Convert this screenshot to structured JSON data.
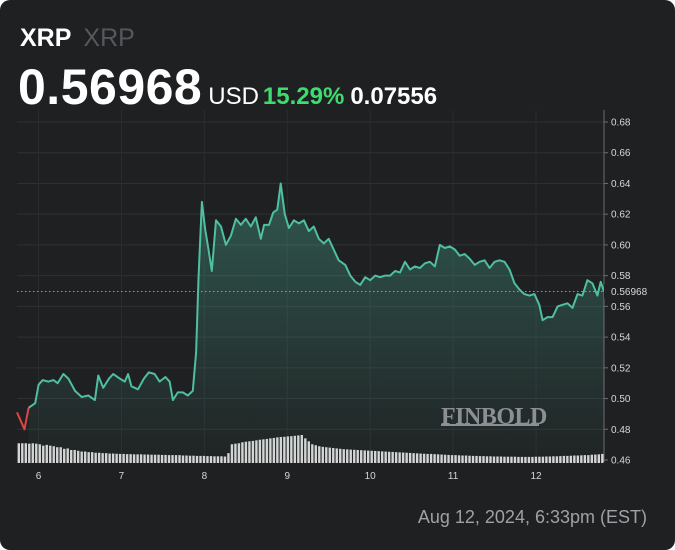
{
  "header": {
    "symbol": "XRP",
    "name": "XRP",
    "price": "0.56968",
    "currency": "USD",
    "change_percent": "15.29%",
    "change_value": "0.07556"
  },
  "footer": {
    "timestamp": "Aug 12, 2024, 6:33pm (EST)"
  },
  "watermark": "FINBOLD",
  "colors": {
    "background": "#1f2022",
    "line": "#4fbfa1",
    "negative_line": "#e04545",
    "change_positive": "#3ddc6e",
    "volume": "#e6e6e6"
  },
  "chart_data": {
    "type": "line",
    "ylim": [
      0.46,
      0.68
    ],
    "y_ticks": [
      "0.68",
      "0.66",
      "0.64",
      "0.62",
      "0.60",
      "0.58",
      "0.56",
      "0.54",
      "0.52",
      "0.50",
      "0.48",
      "0.46"
    ],
    "x_ticks": [
      "6",
      "7",
      "8",
      "9",
      "10",
      "11",
      "12"
    ],
    "x_range": [
      5.74,
      12.82
    ],
    "current_value": "0.56968",
    "grid": true,
    "series": [
      {
        "values": [
          [
            5.74,
            0.491
          ],
          [
            5.83,
            0.48
          ],
          [
            5.88,
            0.494
          ],
          [
            5.96,
            0.497
          ],
          [
            6.0,
            0.509
          ],
          [
            6.05,
            0.512
          ],
          [
            6.12,
            0.511
          ],
          [
            6.18,
            0.512
          ],
          [
            6.23,
            0.51
          ],
          [
            6.3,
            0.516
          ],
          [
            6.36,
            0.513
          ],
          [
            6.44,
            0.505
          ],
          [
            6.52,
            0.501
          ],
          [
            6.6,
            0.502
          ],
          [
            6.68,
            0.499
          ],
          [
            6.72,
            0.515
          ],
          [
            6.78,
            0.507
          ],
          [
            6.85,
            0.513
          ],
          [
            6.9,
            0.516
          ],
          [
            6.98,
            0.513
          ],
          [
            7.04,
            0.511
          ],
          [
            7.08,
            0.516
          ],
          [
            7.12,
            0.508
          ],
          [
            7.2,
            0.506
          ],
          [
            7.27,
            0.513
          ],
          [
            7.33,
            0.517
          ],
          [
            7.4,
            0.516
          ],
          [
            7.46,
            0.511
          ],
          [
            7.53,
            0.514
          ],
          [
            7.58,
            0.511
          ],
          [
            7.62,
            0.499
          ],
          [
            7.68,
            0.504
          ],
          [
            7.74,
            0.504
          ],
          [
            7.8,
            0.502
          ],
          [
            7.86,
            0.505
          ],
          [
            7.9,
            0.53
          ],
          [
            7.93,
            0.58
          ],
          [
            7.97,
            0.628
          ],
          [
            8.01,
            0.61
          ],
          [
            8.05,
            0.597
          ],
          [
            8.09,
            0.583
          ],
          [
            8.14,
            0.616
          ],
          [
            8.2,
            0.612
          ],
          [
            8.26,
            0.6
          ],
          [
            8.32,
            0.606
          ],
          [
            8.38,
            0.617
          ],
          [
            8.44,
            0.613
          ],
          [
            8.5,
            0.617
          ],
          [
            8.56,
            0.612
          ],
          [
            8.62,
            0.618
          ],
          [
            8.68,
            0.604
          ],
          [
            8.72,
            0.613
          ],
          [
            8.78,
            0.613
          ],
          [
            8.83,
            0.621
          ],
          [
            8.88,
            0.623
          ],
          [
            8.92,
            0.64
          ],
          [
            8.97,
            0.62
          ],
          [
            9.02,
            0.611
          ],
          [
            9.08,
            0.616
          ],
          [
            9.14,
            0.614
          ],
          [
            9.2,
            0.616
          ],
          [
            9.26,
            0.609
          ],
          [
            9.32,
            0.612
          ],
          [
            9.38,
            0.604
          ],
          [
            9.44,
            0.601
          ],
          [
            9.5,
            0.604
          ],
          [
            9.56,
            0.597
          ],
          [
            9.62,
            0.59
          ],
          [
            9.7,
            0.587
          ],
          [
            9.76,
            0.58
          ],
          [
            9.82,
            0.576
          ],
          [
            9.88,
            0.574
          ],
          [
            9.94,
            0.579
          ],
          [
            10.0,
            0.577
          ],
          [
            10.06,
            0.58
          ],
          [
            10.12,
            0.579
          ],
          [
            10.18,
            0.58
          ],
          [
            10.24,
            0.58
          ],
          [
            10.3,
            0.583
          ],
          [
            10.36,
            0.582
          ],
          [
            10.42,
            0.589
          ],
          [
            10.48,
            0.584
          ],
          [
            10.54,
            0.586
          ],
          [
            10.6,
            0.585
          ],
          [
            10.66,
            0.588
          ],
          [
            10.72,
            0.589
          ],
          [
            10.78,
            0.586
          ],
          [
            10.84,
            0.6
          ],
          [
            10.9,
            0.598
          ],
          [
            10.96,
            0.599
          ],
          [
            11.02,
            0.597
          ],
          [
            11.08,
            0.593
          ],
          [
            11.14,
            0.594
          ],
          [
            11.2,
            0.591
          ],
          [
            11.26,
            0.587
          ],
          [
            11.32,
            0.589
          ],
          [
            11.38,
            0.59
          ],
          [
            11.44,
            0.585
          ],
          [
            11.5,
            0.589
          ],
          [
            11.56,
            0.59
          ],
          [
            11.62,
            0.589
          ],
          [
            11.68,
            0.584
          ],
          [
            11.74,
            0.575
          ],
          [
            11.8,
            0.571
          ],
          [
            11.86,
            0.568
          ],
          [
            11.92,
            0.567
          ],
          [
            11.98,
            0.568
          ],
          [
            12.04,
            0.561
          ],
          [
            12.08,
            0.551
          ],
          [
            12.14,
            0.553
          ],
          [
            12.2,
            0.553
          ],
          [
            12.26,
            0.56
          ],
          [
            12.32,
            0.561
          ],
          [
            12.38,
            0.562
          ],
          [
            12.44,
            0.559
          ],
          [
            12.5,
            0.568
          ],
          [
            12.56,
            0.567
          ],
          [
            12.62,
            0.577
          ],
          [
            12.68,
            0.575
          ],
          [
            12.74,
            0.567
          ],
          [
            12.78,
            0.576
          ],
          [
            12.82,
            0.56968
          ]
        ]
      }
    ],
    "volume": [
      1.0,
      1.0,
      1.0,
      0.98,
      1.0,
      0.98,
      0.95,
      0.88,
      0.92,
      0.88,
      0.85,
      0.8,
      0.8,
      0.72,
      0.74,
      0.66,
      0.66,
      0.62,
      0.58,
      0.58,
      0.55,
      0.55,
      0.52,
      0.52,
      0.5,
      0.5,
      0.48,
      0.48,
      0.47,
      0.46,
      0.46,
      0.45,
      0.45,
      0.44,
      0.44,
      0.44,
      0.43,
      0.43,
      0.42,
      0.42,
      0.42,
      0.41,
      0.41,
      0.4,
      0.4,
      0.4,
      0.4,
      0.38,
      0.38,
      0.37,
      0.37,
      0.36,
      0.36,
      0.36,
      0.35,
      0.35,
      0.34,
      0.34,
      0.34,
      0.33,
      0.5,
      0.95,
      0.98,
      1.0,
      1.05,
      1.08,
      1.1,
      1.12,
      1.15,
      1.18,
      1.2,
      1.22,
      1.25,
      1.27,
      1.3,
      1.32,
      1.33,
      1.35,
      1.36,
      1.38,
      1.4,
      1.42,
      1.25,
      1.1,
      0.95,
      0.9,
      0.85,
      0.82,
      0.8,
      0.78,
      0.76,
      0.74,
      0.72,
      0.7,
      0.69,
      0.68,
      0.67,
      0.66,
      0.65,
      0.64,
      0.63,
      0.62,
      0.61,
      0.6,
      0.59,
      0.58,
      0.57,
      0.56,
      0.55,
      0.54,
      0.53,
      0.52,
      0.51,
      0.5,
      0.49,
      0.48,
      0.47,
      0.46,
      0.46,
      0.45,
      0.44,
      0.43,
      0.42,
      0.41,
      0.4,
      0.4,
      0.39,
      0.38,
      0.38,
      0.37,
      0.36,
      0.36,
      0.35,
      0.35,
      0.34,
      0.34,
      0.33,
      0.33,
      0.33,
      0.32,
      0.32,
      0.32,
      0.32,
      0.31,
      0.31,
      0.31,
      0.31,
      0.31,
      0.32,
      0.32,
      0.32,
      0.33,
      0.33,
      0.34,
      0.34,
      0.35,
      0.36,
      0.36,
      0.37,
      0.38,
      0.38,
      0.39,
      0.4,
      0.4,
      0.42,
      0.43,
      0.44,
      0.46
    ]
  }
}
